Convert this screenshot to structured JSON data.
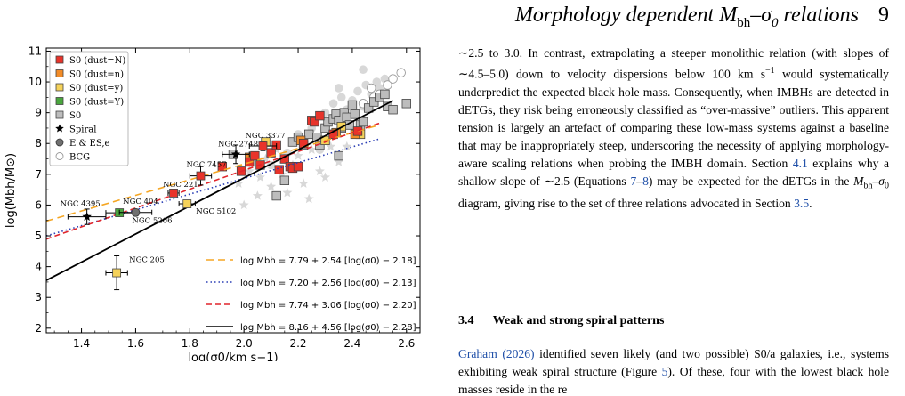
{
  "header": {
    "title": "Morphology dependent M bh–σ0 relations",
    "title_parts": [
      "Morphology dependent ",
      "M",
      "bh",
      "–",
      "σ",
      "0",
      " relations"
    ],
    "page_number": "9"
  },
  "body_paragraph": "∼2.5 to 3.0. In contrast, extrapolating a steeper monolithic relation (with slopes of ∼4.5–5.0) down to velocity dispersions below 100 km s−1 would systematically underpredict the expected black hole mass. Consequently, when IMBHs are detected in dETGs, they risk being erroneously classified as “over-massive” outliers. This apparent tension is largely an artefact of comparing these low-mass systems against a baseline that may be inappropriately steep, underscoring the necessity of applying morphology-aware scaling relations when probing the IMBH domain. Section 4.1 explains why a shallow slope of ∼2.5 (Equations 7–8) may be expected for the dETGs in the Mbh–σ0 diagram, giving rise to the set of three relations advocated in Section 3.5.",
  "body_segments": [
    {
      "t": "∼2.5 to 3.0. In contrast, extrapolating a steeper monolithic relation (with slopes of ∼4.5–5.0) down to velocity dispersions below 100 km s"
    },
    {
      "t": "−1",
      "sup": true
    },
    {
      "t": " would systematically underpredict the expected black hole mass. Consequently, when IMBHs are detected in dETGs, they risk being erroneously classified as “over-massive” outliers. This apparent tension is largely an artefact of comparing these low-mass systems against a baseline that may be inappropriately steep, underscoring the necessity of applying morphology-aware scaling relations when probing the IMBH domain. Section "
    },
    {
      "t": "4.1",
      "link": true
    },
    {
      "t": " explains why a shallow slope of ∼2.5 (Equations "
    },
    {
      "t": "7",
      "link": true
    },
    {
      "t": "–"
    },
    {
      "t": "8",
      "link": true
    },
    {
      "t": ") may be expected for the dETGs in the "
    },
    {
      "t": "M",
      "it": true
    },
    {
      "t": "bh",
      "sub": true
    },
    {
      "t": "–"
    },
    {
      "t": "σ",
      "it": true
    },
    {
      "t": "0",
      "sub": true
    },
    {
      "t": " diagram, giving rise to the set of three relations advocated in Section "
    },
    {
      "t": "3.5",
      "link": true
    },
    {
      "t": "."
    }
  ],
  "section": {
    "number": "3.4",
    "title": "Weak and strong spiral patterns"
  },
  "section_text": "Graham (2026) identified seven likely (and two possible) S0/a galaxies, i.e., systems exhibiting weak spiral structure (Figure 5). Of these, four with the lowest black hole masses reside in the re",
  "section_segments": [
    {
      "t": "Graham (2026)",
      "link": true
    },
    {
      "t": " identified seven likely (and two possible) S0/a galaxies, i.e., systems exhibiting weak spiral structure (Figure "
    },
    {
      "t": "5",
      "link": true
    },
    {
      "t": "). Of these, four with the lowest black hole masses reside in the re"
    }
  ],
  "colors": {
    "dust_N": "#e8332a",
    "dust_n": "#f28c28",
    "dust_y": "#f5d25a",
    "dust_Y": "#4aa63e",
    "s0": "#bdbdbd",
    "bg_points": "#d8d8d8",
    "link": "#1f4fa8",
    "fit1": "#f5a623",
    "fit2": "#2b3fb5",
    "fit3": "#e0242b",
    "fit4": "#000000"
  },
  "chart_data": {
    "type": "scatter",
    "title": "",
    "xlabel": "log(σ0/km s−1)",
    "ylabel": "log(Mbh/M⊙)",
    "xlim": [
      1.27,
      2.65
    ],
    "ylim": [
      1.85,
      11.1
    ],
    "xticks": [
      "1.4",
      "1.6",
      "1.8",
      "2.0",
      "2.2",
      "2.4",
      "2.6"
    ],
    "yticks": [
      "2",
      "3",
      "4",
      "5",
      "6",
      "7",
      "8",
      "9",
      "10",
      "11"
    ],
    "legend_position": "top-left",
    "legend": [
      {
        "label": "S0 (dust=N)",
        "marker": "square",
        "color": "#e8332a"
      },
      {
        "label": "S0 (dust=n)",
        "marker": "square",
        "color": "#f28c28"
      },
      {
        "label": "S0 (dust=y)",
        "marker": "square",
        "color": "#f5d25a"
      },
      {
        "label": "S0 (dust=Y)",
        "marker": "square",
        "color": "#4aa63e"
      },
      {
        "label": "S0",
        "marker": "square",
        "color": "#bdbdbd"
      },
      {
        "label": "Spiral",
        "marker": "star",
        "color": "#000000"
      },
      {
        "label": "E & ES,e",
        "marker": "circle",
        "color": "#707070"
      },
      {
        "label": "BCG",
        "marker": "open-circle",
        "color": "#ffffff"
      }
    ],
    "fits": [
      {
        "label": "log Mbh = 7.79 + 2.54 [log(σ0) − 2.18]",
        "a": 7.79,
        "b": 2.54,
        "x0": 2.18,
        "style": "dashed",
        "color": "#f5a623",
        "xrange": [
          1.27,
          2.5
        ]
      },
      {
        "label": "log Mbh = 7.20 + 2.56 [log(σ0) − 2.13]",
        "a": 7.2,
        "b": 2.56,
        "x0": 2.13,
        "style": "dotted",
        "color": "#2b3fb5",
        "xrange": [
          1.27,
          2.5
        ]
      },
      {
        "label": "log Mbh = 7.74 + 3.06 [log(σ0) − 2.20]",
        "a": 7.74,
        "b": 3.06,
        "x0": 2.2,
        "style": "dashdash",
        "color": "#e0242b",
        "xrange": [
          1.27,
          2.5
        ]
      },
      {
        "label": "log Mbh = 8.16 + 4.56 [log(σ0) − 2.28]",
        "a": 8.16,
        "b": 4.56,
        "x0": 2.28,
        "style": "solid",
        "color": "#000000",
        "xrange": [
          1.27,
          2.55
        ]
      }
    ],
    "annotations": [
      {
        "text": "NGC 4395",
        "x": 1.42,
        "y": 5.62
      },
      {
        "text": "NGC 404",
        "x": 1.54,
        "y": 5.75
      },
      {
        "text": "NGC 5206",
        "x": 1.6,
        "y": 5.76
      },
      {
        "text": "NGC 221",
        "x": 1.74,
        "y": 6.39
      },
      {
        "text": "NGC 7457",
        "x": 1.84,
        "y": 6.95
      },
      {
        "text": "NGC 5102",
        "x": 1.79,
        "y": 6.04
      },
      {
        "text": "NGC 2748",
        "x": 1.97,
        "y": 7.65
      },
      {
        "text": "NGC 3377",
        "x": 2.07,
        "y": 7.92
      },
      {
        "text": "NGC 205",
        "x": 1.53,
        "y": 3.8
      }
    ],
    "labelled_points": [
      {
        "name": "NGC 4395",
        "x": 1.42,
        "y": 5.62,
        "marker": "star",
        "color": "#000000",
        "xerr": 0.07,
        "yerr": 0.25
      },
      {
        "name": "NGC 404",
        "x": 1.54,
        "y": 5.75,
        "marker": "square",
        "color": "#4aa63e",
        "xerr": 0.05,
        "yerr": 0.1
      },
      {
        "name": "NGC 5206",
        "x": 1.6,
        "y": 5.76,
        "marker": "circle",
        "color": "#707070",
        "xerr": 0.06,
        "yerr": 0.1
      },
      {
        "name": "NGC 221",
        "x": 1.74,
        "y": 6.39,
        "marker": "square",
        "color": "#e8332a",
        "xerr": 0.02,
        "yerr": 0.1
      },
      {
        "name": "NGC 7457",
        "x": 1.84,
        "y": 6.95,
        "marker": "square",
        "color": "#e8332a",
        "xerr": 0.04,
        "yerr": 0.3
      },
      {
        "name": "NGC 5102",
        "x": 1.79,
        "y": 6.04,
        "marker": "square",
        "color": "#f5d25a",
        "xerr": 0.03,
        "yerr": 0.1
      },
      {
        "name": "NGC 2748",
        "x": 1.97,
        "y": 7.65,
        "marker": "star",
        "color": "#000000",
        "xerr": 0.05,
        "yerr": 0.3
      },
      {
        "name": "NGC 3377",
        "x": 2.07,
        "y": 7.92,
        "marker": "square",
        "color": "#e8332a",
        "xerr": 0.05,
        "yerr": 0.15
      },
      {
        "name": "NGC 205",
        "x": 1.53,
        "y": 3.8,
        "marker": "square",
        "color": "#f5d25a",
        "xerr": 0.04,
        "yerr": 0.55
      }
    ],
    "series": [
      {
        "name": "S0 (dust=N)",
        "marker": "square",
        "color": "#e8332a",
        "points": [
          [
            1.92,
            7.25
          ],
          [
            1.99,
            7.1
          ],
          [
            2.02,
            7.4
          ],
          [
            2.04,
            7.6
          ],
          [
            2.06,
            7.3
          ],
          [
            2.1,
            7.7
          ],
          [
            2.12,
            7.95
          ],
          [
            2.13,
            7.15
          ],
          [
            2.15,
            7.5
          ],
          [
            2.17,
            7.25
          ],
          [
            2.18,
            7.2
          ],
          [
            2.2,
            7.25
          ],
          [
            2.22,
            8.0
          ],
          [
            2.25,
            8.75
          ],
          [
            2.26,
            8.7
          ],
          [
            2.28,
            8.9
          ],
          [
            2.33,
            8.3
          ],
          [
            2.42,
            8.4
          ]
        ]
      },
      {
        "name": "S0 (dust=n)",
        "marker": "square",
        "color": "#f28c28",
        "points": [
          [
            2.02,
            7.55
          ],
          [
            2.21,
            8.1
          ],
          [
            2.34,
            8.35
          ],
          [
            2.41,
            8.3
          ]
        ]
      },
      {
        "name": "S0 (dust=y)",
        "marker": "square",
        "color": "#f5d25a",
        "points": [
          [
            2.08,
            8.05
          ],
          [
            2.3,
            8.1
          ],
          [
            2.36,
            8.55
          ],
          [
            2.43,
            8.3
          ]
        ]
      },
      {
        "name": "S0",
        "marker": "square",
        "color": "#bdbdbd",
        "points": [
          [
            1.96,
            7.65
          ],
          [
            2.12,
            6.3
          ],
          [
            2.15,
            6.8
          ],
          [
            2.18,
            8.05
          ],
          [
            2.2,
            8.2
          ],
          [
            2.22,
            7.95
          ],
          [
            2.24,
            8.3
          ],
          [
            2.28,
            7.95
          ],
          [
            2.3,
            8.5
          ],
          [
            2.31,
            8.7
          ],
          [
            2.33,
            8.8
          ],
          [
            2.34,
            8.95
          ],
          [
            2.35,
            8.75
          ],
          [
            2.36,
            8.5
          ],
          [
            2.37,
            9.0
          ],
          [
            2.38,
            8.85
          ],
          [
            2.39,
            8.6
          ],
          [
            2.4,
            9.25
          ],
          [
            2.41,
            8.95
          ],
          [
            2.43,
            8.6
          ],
          [
            2.44,
            8.7
          ],
          [
            2.46,
            9.15
          ],
          [
            2.48,
            9.35
          ],
          [
            2.5,
            9.5
          ],
          [
            2.52,
            9.6
          ],
          [
            2.53,
            9.2
          ],
          [
            2.55,
            9.1
          ],
          [
            2.6,
            9.3
          ],
          [
            2.35,
            7.6
          ],
          [
            2.27,
            8.2
          ]
        ]
      },
      {
        "name": "E & ES,e",
        "marker": "circle",
        "color": "#d8d8d8",
        "points": [
          [
            2.25,
            8.5
          ],
          [
            2.3,
            9.0
          ],
          [
            2.33,
            9.3
          ],
          [
            2.36,
            9.5
          ],
          [
            2.38,
            9.1
          ],
          [
            2.4,
            9.4
          ],
          [
            2.42,
            9.7
          ],
          [
            2.44,
            9.2
          ],
          [
            2.45,
            9.9
          ],
          [
            2.47,
            9.6
          ],
          [
            2.49,
            10.0
          ],
          [
            2.52,
            10.1
          ],
          [
            2.38,
            8.7
          ],
          [
            2.2,
            8.3
          ],
          [
            2.28,
            7.8
          ],
          [
            2.16,
            7.7
          ],
          [
            2.1,
            7.3
          ],
          [
            2.35,
            9.8
          ],
          [
            2.44,
            10.4
          ],
          [
            2.5,
            9.8
          ]
        ]
      },
      {
        "name": "BCG",
        "marker": "open-circle",
        "color": "#ffffff",
        "points": [
          [
            2.44,
            9.3
          ],
          [
            2.48,
            9.5
          ],
          [
            2.5,
            9.6
          ],
          [
            2.53,
            9.9
          ],
          [
            2.55,
            10.1
          ],
          [
            2.58,
            10.3
          ],
          [
            2.47,
            9.8
          ]
        ]
      },
      {
        "name": "Spiral",
        "marker": "star",
        "color": "#d8d8d8",
        "points": [
          [
            1.98,
            6.7
          ],
          [
            2.02,
            7.1
          ],
          [
            2.06,
            6.9
          ],
          [
            2.08,
            7.5
          ],
          [
            2.1,
            6.6
          ],
          [
            2.14,
            7.0
          ],
          [
            2.16,
            6.4
          ],
          [
            2.18,
            7.3
          ],
          [
            2.2,
            7.6
          ],
          [
            2.22,
            6.7
          ],
          [
            2.24,
            6.2
          ],
          [
            2.25,
            7.8
          ],
          [
            2.28,
            7.1
          ],
          [
            2.3,
            6.9
          ],
          [
            2.32,
            7.9
          ],
          [
            2.35,
            7.4
          ],
          [
            2.38,
            7.9
          ],
          [
            2.12,
            7.8
          ],
          [
            2.05,
            6.3
          ],
          [
            2.0,
            6.0
          ]
        ]
      }
    ]
  }
}
